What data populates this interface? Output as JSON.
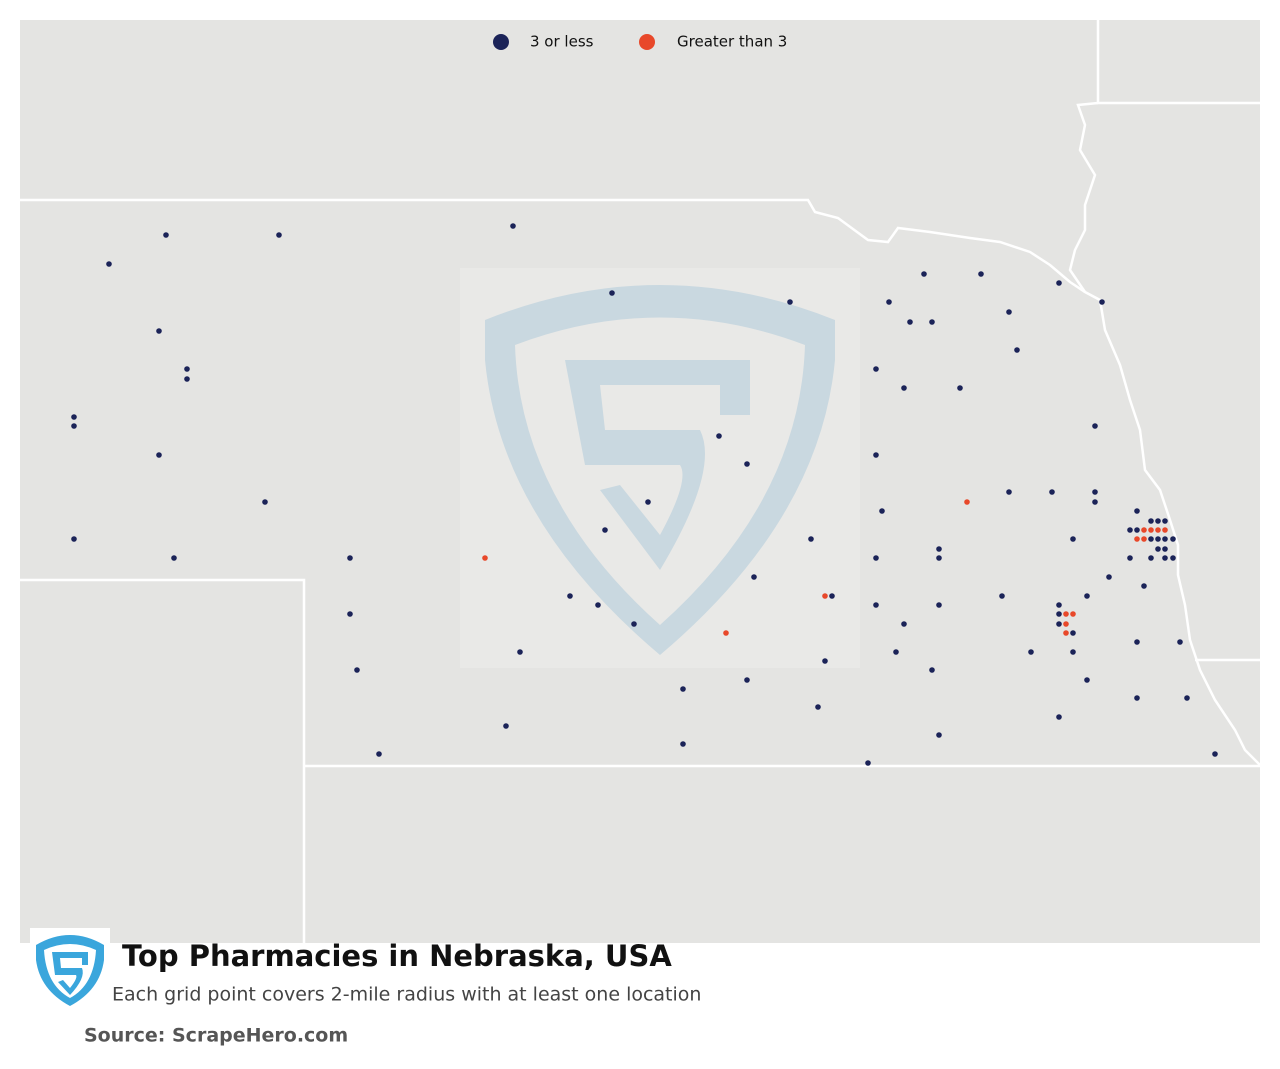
{
  "legend": {
    "items": [
      {
        "label": "3 or less",
        "color": "#1b2358"
      },
      {
        "label": "Greater than 3",
        "color": "#e8482a"
      }
    ]
  },
  "title": "Top Pharmacies in Nebraska, USA",
  "subtitle": "Each grid point covers 2-mile radius with at least one location",
  "source": "Source: ScrapeHero.com"
}
